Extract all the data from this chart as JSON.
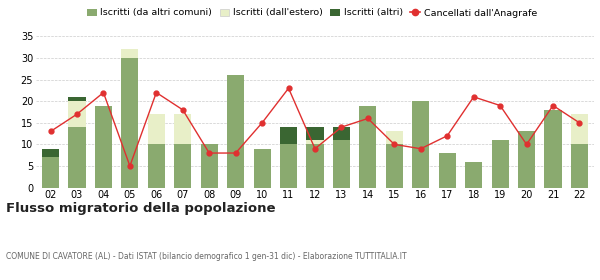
{
  "years": [
    "02",
    "03",
    "04",
    "05",
    "06",
    "07",
    "08",
    "09",
    "10",
    "11",
    "12",
    "13",
    "14",
    "15",
    "16",
    "17",
    "18",
    "19",
    "20",
    "21",
    "22"
  ],
  "iscritti_altri_comuni": [
    7,
    14,
    19,
    30,
    10,
    10,
    10,
    26,
    9,
    10,
    10,
    11,
    19,
    10,
    20,
    8,
    6,
    11,
    13,
    18,
    10
  ],
  "iscritti_estero": [
    0,
    6,
    0,
    2,
    7,
    7,
    0,
    0,
    0,
    0,
    1,
    0,
    0,
    3,
    0,
    0,
    0,
    0,
    0,
    0,
    7
  ],
  "iscritti_altri": [
    2,
    1,
    0,
    0,
    0,
    0,
    0,
    0,
    0,
    4,
    3,
    3,
    0,
    0,
    0,
    0,
    0,
    0,
    0,
    0,
    0
  ],
  "cancellati": [
    13,
    17,
    22,
    5,
    22,
    18,
    8,
    8,
    15,
    23,
    9,
    14,
    16,
    10,
    9,
    12,
    21,
    19,
    10,
    19,
    15
  ],
  "color_altri_comuni": "#8aaa6f",
  "color_estero": "#e8efc8",
  "color_altri": "#3a6632",
  "color_cancellati": "#e03030",
  "ylim": [
    0,
    35
  ],
  "yticks": [
    0,
    5,
    10,
    15,
    20,
    25,
    30,
    35
  ],
  "title": "Flusso migratorio della popolazione",
  "subtitle": "COMUNE DI CAVATORE (AL) - Dati ISTAT (bilancio demografico 1 gen-31 dic) - Elaborazione TUTTITALIA.IT",
  "legend_labels": [
    "Iscritti (da altri comuni)",
    "Iscritti (dall'estero)",
    "Iscritti (altri)",
    "Cancellati dall'Anagrafe"
  ],
  "background_color": "#ffffff"
}
